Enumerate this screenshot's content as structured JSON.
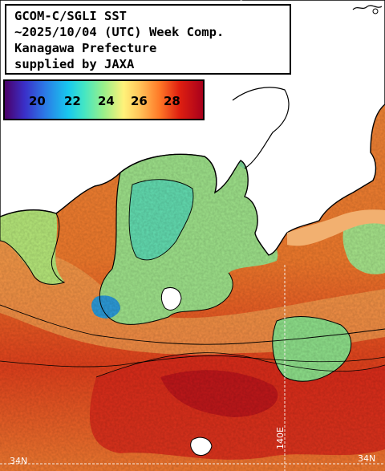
{
  "title_box": {
    "lines": [
      "GCOM-C/SGLI SST",
      "~2025/10/04 (UTC) Week Comp.",
      "Kanagawa Prefecture",
      "supplied by JAXA"
    ]
  },
  "legend": {
    "labels": [
      "20",
      "22",
      "24",
      "26",
      "28"
    ],
    "colors": [
      "#4b0069",
      "#3a2fc8",
      "#18c8ee",
      "#9af08a",
      "#fff27a",
      "#ff7a28",
      "#a8001c"
    ]
  },
  "grid_labels": {
    "lon": "140E",
    "lat_left": "34N",
    "lat_right": "34N"
  },
  "map": {
    "land_color": "#ffffff",
    "coast_color": "#000000",
    "gridline_color": "#f2e6e0",
    "icon": "coastline-map-icon"
  }
}
